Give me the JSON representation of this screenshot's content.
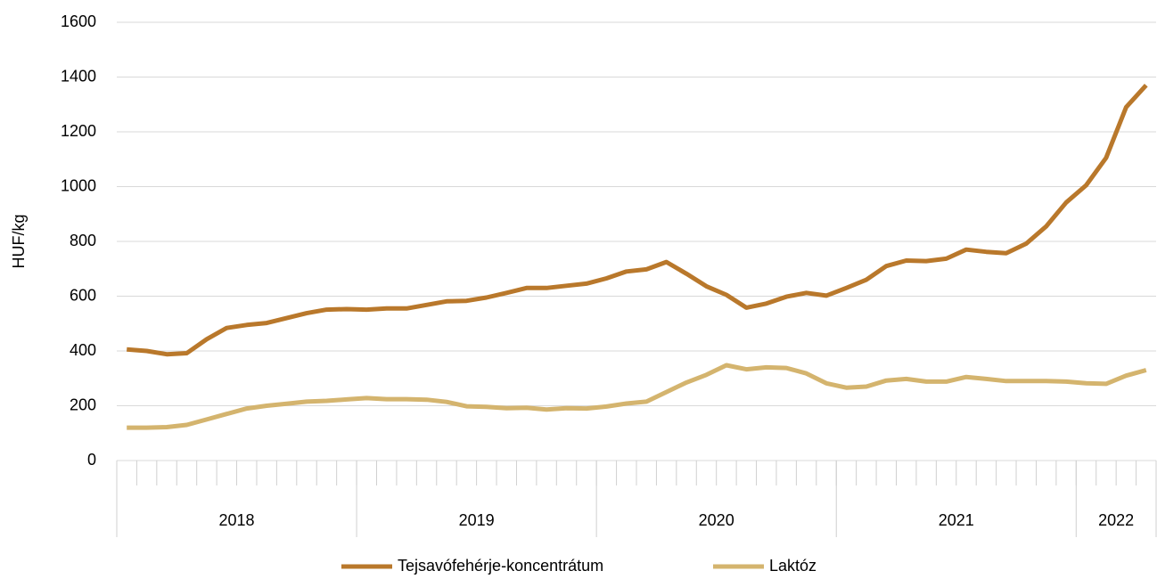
{
  "chart_data": {
    "type": "line",
    "y_label": "HUF/kg",
    "categories": [
      null,
      null,
      null,
      null,
      null,
      null,
      null,
      null,
      null,
      null,
      null,
      null,
      null,
      null,
      null,
      null,
      null,
      null,
      null,
      null,
      null,
      null,
      null,
      null,
      null,
      null,
      null,
      null,
      null,
      null,
      null,
      null,
      null,
      null,
      null,
      null,
      null,
      null,
      null,
      null,
      null,
      null,
      null,
      null,
      null,
      null,
      null,
      null,
      null,
      null,
      null,
      null
    ],
    "category_groups": [
      {
        "label": "2018",
        "count": 12
      },
      {
        "label": "2019",
        "count": 12
      },
      {
        "label": "2020",
        "count": 12
      },
      {
        "label": "2021",
        "count": 12
      },
      {
        "label": "2022",
        "count": 4
      }
    ],
    "series": [
      {
        "name": "Tejsavófehérje-koncentrátum",
        "color": "#b9782b",
        "values": [
          406,
          400,
          388,
          392,
          443,
          484,
          495,
          502,
          520,
          538,
          551,
          553,
          551,
          555,
          555,
          568,
          581,
          583,
          595,
          612,
          630,
          630,
          638,
          646,
          665,
          690,
          698,
          725,
          682,
          636,
          605,
          558,
          573,
          598,
          612,
          602,
          630,
          660,
          710,
          730,
          728,
          737,
          770,
          762,
          757,
          792,
          855,
          942,
          1005,
          1105,
          1290,
          1370
        ]
      },
      {
        "name": "Laktóz",
        "color": "#d4b46e",
        "values": [
          120,
          120,
          122,
          130,
          150,
          170,
          190,
          200,
          207,
          215,
          218,
          223,
          228,
          224,
          224,
          222,
          214,
          198,
          196,
          191,
          193,
          186,
          191,
          190,
          197,
          208,
          215,
          250,
          285,
          313,
          348,
          333,
          340,
          338,
          318,
          282,
          266,
          270,
          292,
          298,
          288,
          288,
          305,
          298,
          290,
          290,
          290,
          288,
          282,
          280,
          310,
          330
        ]
      }
    ],
    "ylim": [
      0,
      1600
    ],
    "yticks": [
      0,
      200,
      400,
      600,
      800,
      1000,
      1200,
      1400,
      1600
    ],
    "grid": true,
    "legend": "bottom"
  }
}
